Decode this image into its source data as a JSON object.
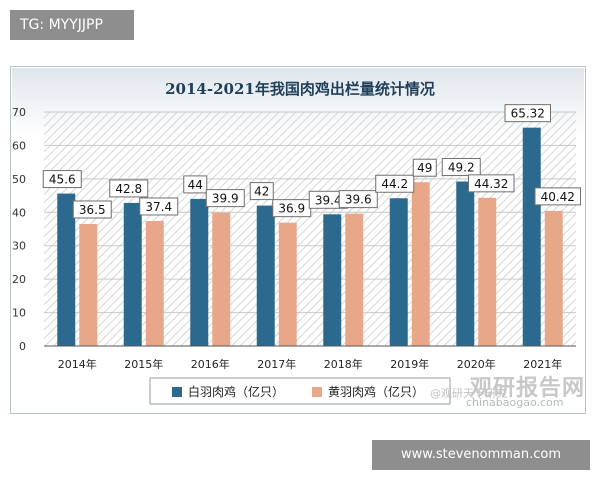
{
  "watermark_tg": "TG: MYYJJPP",
  "watermark_site": "www.stevenomman.com",
  "watermark_brand": "观研报告网",
  "watermark_url": "chinabaogao.com",
  "watermark_handle": "@观研天下研究",
  "colors": {
    "white_series": "#2b6a8e",
    "yellow_series": "#e9a789",
    "axis": "#555555",
    "grid": "#c9c9c9"
  },
  "chart_data": {
    "type": "bar",
    "title": "2014-2021年我国肉鸡出栏量统计情况",
    "categories": [
      "2014年",
      "2015年",
      "2016年",
      "2017年",
      "2018年",
      "2019年",
      "2020年",
      "2021年"
    ],
    "series": [
      {
        "name": "白羽肉鸡（亿只）",
        "values": [
          45.6,
          42.8,
          44,
          42,
          39.4,
          44.2,
          49.2,
          65.32
        ],
        "labels": [
          "45.6",
          "42.8",
          "44",
          "42",
          "39.4",
          "44.2",
          "49.2",
          "65.32"
        ]
      },
      {
        "name": "黄羽肉鸡（亿只）",
        "values": [
          36.5,
          37.4,
          39.9,
          36.9,
          39.6,
          49,
          44.32,
          40.42
        ],
        "labels": [
          "36.5",
          "37.4",
          "39.9",
          "36.9",
          "39.6",
          "49",
          "44.32",
          "40.42"
        ]
      }
    ],
    "yticks": [
      "0",
      "10",
      "20",
      "30",
      "40",
      "50",
      "60",
      "70"
    ],
    "ylim": [
      0,
      70
    ],
    "grid": true,
    "legend_position": "bottom"
  }
}
